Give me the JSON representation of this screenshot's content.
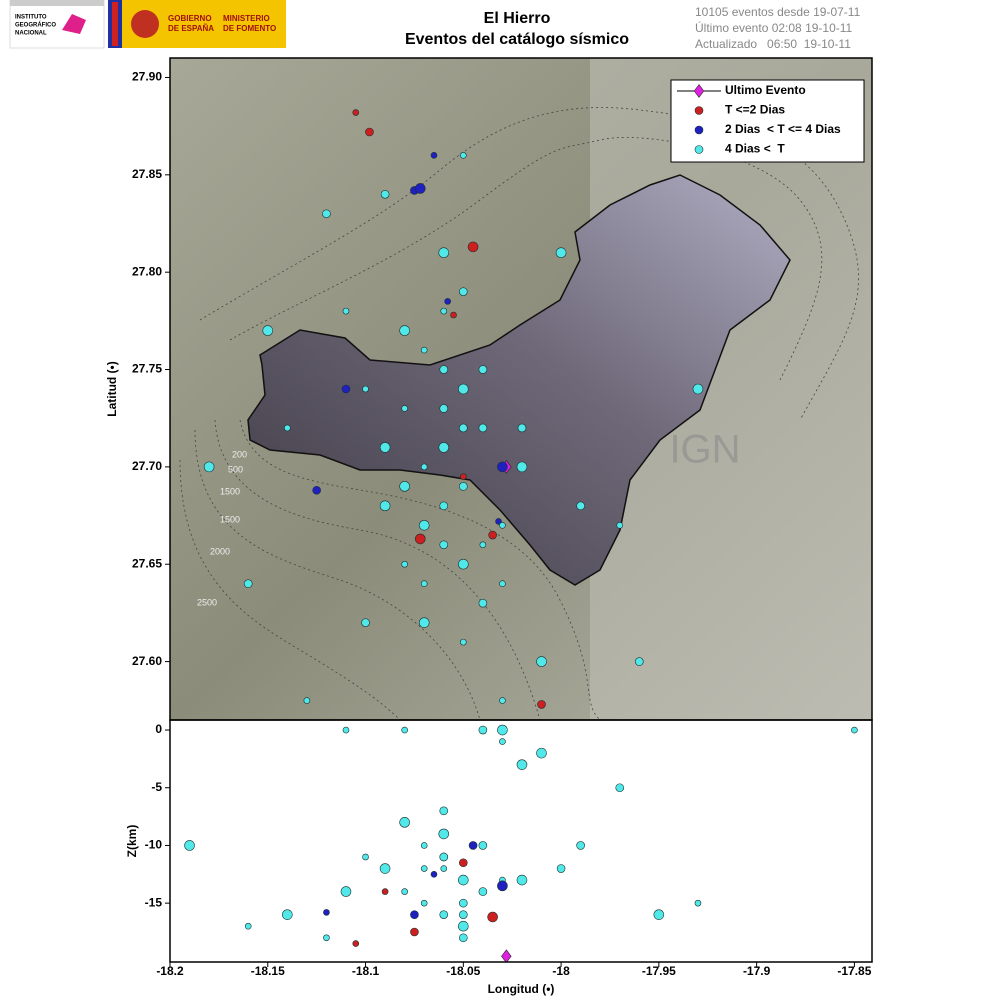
{
  "logos": {
    "ign": [
      "INSTITUTO",
      "GEOGRÁFICO",
      "NACIONAL"
    ],
    "gobierno": [
      "GOBIERNO",
      "DE ESPAÑA"
    ],
    "ministerio": [
      "MINISTERIO",
      "DE FOMENTO"
    ]
  },
  "header": {
    "title": "El Hierro",
    "subtitle": "Eventos del catálogo sísmico",
    "info": [
      "10105 eventos desde 19-07-11",
      "Último evento 02:08 19-10-11",
      "Actualizado   06:50  19-10-11"
    ]
  },
  "map": {
    "watermark": "IGN",
    "contour_labels": [
      "200",
      "500",
      "1500",
      "1500",
      "2000",
      "2500"
    ]
  },
  "chart_data": [
    {
      "type": "scatter",
      "ylabel": "Latitud (•)",
      "xlim": [
        -18.2,
        -17.841
      ],
      "ylim": [
        27.57,
        27.91
      ],
      "yticks": [
        {
          "value": 27.6,
          "label": "27.60"
        },
        27.65,
        {
          "value": 27.7,
          "label": "27.70"
        },
        27.75,
        {
          "value": 27.8,
          "label": "27.80"
        },
        27.85,
        {
          "value": 27.9,
          "label": "27.90"
        }
      ],
      "legend": "upper right",
      "series": [
        {
          "name": "Ultimo Evento",
          "color": "#e020e0",
          "marker": "diamond",
          "x": [
            -18.028
          ],
          "values": [
            27.7
          ]
        },
        {
          "name": "T <=2 Dias",
          "color": "#cc2020",
          "marker": "circle",
          "x": [
            -18.105,
            -18.098,
            -18.045,
            -18.055,
            -18.035,
            -18.072,
            -18.05,
            -18.01
          ],
          "values": [
            27.882,
            27.872,
            27.813,
            27.778,
            27.665,
            27.663,
            27.695,
            27.578
          ]
        },
        {
          "name": "2 Dias  < T <= 4 Dias",
          "color": "#2020c0",
          "marker": "circle",
          "x": [
            -18.065,
            -18.075,
            -18.072,
            -18.058,
            -18.11,
            -18.03,
            -18.032,
            -18.125
          ],
          "values": [
            27.86,
            27.842,
            27.843,
            27.785,
            27.74,
            27.7,
            27.672,
            27.688
          ]
        },
        {
          "name": "4 Dias <  T",
          "color": "#50e8e8",
          "marker": "circle",
          "x": [
            -18.07,
            -18.06,
            -18.05,
            -18.08,
            -18.04,
            -18.06,
            -18.07,
            -18.05,
            -18.09,
            -18.03,
            -18.06,
            -18.05,
            -18.07,
            -18.04,
            -18.08,
            -18.06,
            -18.05,
            -18.02,
            -18.1,
            -18.06,
            -18.07,
            -18.04,
            -18.05,
            -18.09,
            -18.03,
            -18.06,
            -18.08,
            -18.05,
            -18.04,
            -18.07,
            -18.11,
            -18.12,
            -18,
            -18.14,
            -18.16,
            -18.18,
            -17.97,
            -17.96,
            -17.93,
            -18.13,
            -18.09,
            -18.01,
            -18.03,
            -18.1,
            -18.06,
            -18.05,
            -17.99,
            -18.15,
            -18.08,
            -18.02
          ],
          "values": [
            27.76,
            27.75,
            27.74,
            27.73,
            27.72,
            27.71,
            27.7,
            27.69,
            27.68,
            27.67,
            27.66,
            27.65,
            27.64,
            27.63,
            27.77,
            27.78,
            27.72,
            27.7,
            27.74,
            27.68,
            27.62,
            27.66,
            27.79,
            27.71,
            27.64,
            27.73,
            27.69,
            27.61,
            27.75,
            27.67,
            27.78,
            27.83,
            27.81,
            27.72,
            27.64,
            27.7,
            27.67,
            27.6,
            27.74,
            27.58,
            27.84,
            27.6,
            27.58,
            27.62,
            27.81,
            27.86,
            27.68,
            27.77,
            27.65,
            27.72
          ]
        }
      ]
    },
    {
      "type": "scatter",
      "xlabel": "Longitud (•)",
      "ylabel": "Z(km)",
      "xlim": [
        -18.2,
        -17.841
      ],
      "ylim": [
        -20.1,
        0.87
      ],
      "xticks": [
        -18.2,
        -18.15,
        -18.1,
        -18.05,
        -18,
        -17.95,
        -17.9,
        -17.85
      ],
      "yticks": [
        -15,
        -10,
        -5,
        0
      ],
      "series": [
        {
          "color": "#50e8e8",
          "marker": "circle",
          "x": [
            -18.07,
            -18.06,
            -18.05,
            -18.08,
            -18.04,
            -18.06,
            -18.07,
            -18.05,
            -18.09,
            -18.03,
            -18.06,
            -18.05,
            -18.07,
            -18.04,
            -18.08,
            -18.06,
            -18.05,
            -18.02,
            -18.1,
            -18.06,
            -18.11,
            -18.12,
            -18,
            -18.14,
            -18.16,
            -17.97,
            -17.95,
            -18.03,
            -18.04,
            -18.01,
            -18.08,
            -17.99,
            -18.19,
            -17.93,
            -18.06,
            -18.02,
            -18.11,
            -18.05,
            -18.03,
            -17.85
          ],
          "values": [
            -12,
            -11,
            -13,
            -14,
            -10,
            -9,
            -15,
            -16,
            -12,
            -13,
            -11,
            -17,
            -10,
            -14,
            -8,
            -12,
            -15,
            -13,
            -11,
            -16,
            -14,
            -18,
            -12,
            -16,
            -17,
            -5,
            -16,
            -1,
            0,
            -2,
            0,
            -10,
            -10,
            -15,
            -7,
            -3,
            0,
            -18,
            0,
            0
          ]
        },
        {
          "color": "#cc2020",
          "marker": "circle",
          "x": [
            -18.105,
            -18.05,
            -18.035,
            -18.09,
            -18.075
          ],
          "values": [
            -18.5,
            -11.5,
            -16.2,
            -14,
            -17.5
          ]
        },
        {
          "color": "#2020c0",
          "marker": "circle",
          "x": [
            -18.065,
            -18.075,
            -18.03,
            -18.12,
            -18.045
          ],
          "values": [
            -12.5,
            -16,
            -13.5,
            -15.8,
            -10
          ]
        },
        {
          "color": "#e020e0",
          "marker": "diamond",
          "x": [
            -18.028
          ],
          "values": [
            -19.6
          ]
        }
      ]
    }
  ]
}
